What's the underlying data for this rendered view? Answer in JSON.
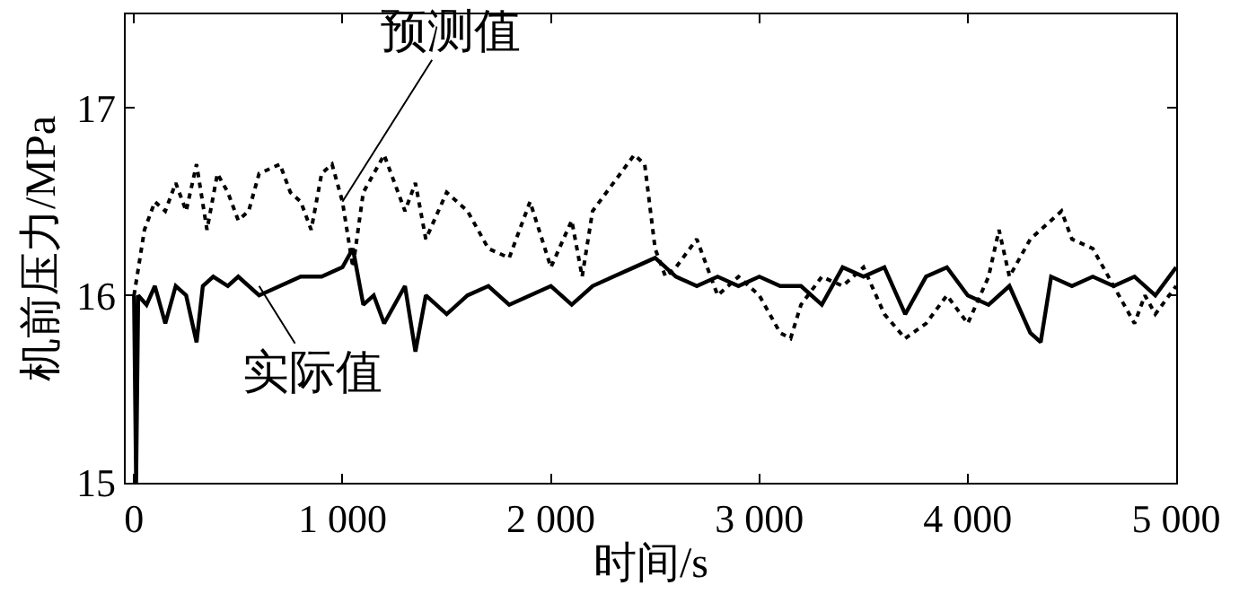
{
  "chart_data": {
    "type": "line",
    "xlabel": "时间/s",
    "ylabel": "机前压力/MPa",
    "xlim": [
      -40,
      5000
    ],
    "ylim": [
      15,
      17.5
    ],
    "xticks": [
      0,
      {
        "value": 1000,
        "label": "1 000"
      },
      {
        "value": 2000,
        "label": "2 000"
      },
      {
        "value": 3000,
        "label": "3 000"
      },
      {
        "value": 4000,
        "label": "4 000"
      },
      {
        "value": 5000,
        "label": "5 000"
      }
    ],
    "yticks": [
      15,
      16,
      17
    ],
    "marker": "none",
    "series": [
      {
        "color": "#000000",
        "line_style": "solid",
        "x": [
          0,
          10,
          20,
          60,
          100,
          150,
          200,
          250,
          300,
          330,
          380,
          450,
          500,
          600,
          700,
          800,
          900,
          1000,
          1050,
          1100,
          1150,
          1200,
          1300,
          1350,
          1400,
          1500,
          1600,
          1700,
          1800,
          1900,
          2000,
          2100,
          2200,
          2300,
          2400,
          2500,
          2600,
          2700,
          2800,
          2900,
          3000,
          3100,
          3200,
          3300,
          3400,
          3500,
          3600,
          3700,
          3800,
          3900,
          4000,
          4100,
          4200,
          4300,
          4350,
          4400,
          4500,
          4600,
          4700,
          4800,
          4900,
          5000
        ],
        "values": [
          16.0,
          15.0,
          16.0,
          15.95,
          16.05,
          15.85,
          16.05,
          16.0,
          15.75,
          16.05,
          16.1,
          16.05,
          16.1,
          16.0,
          16.05,
          16.1,
          16.1,
          16.15,
          16.25,
          15.95,
          16.0,
          15.85,
          16.05,
          15.7,
          16.0,
          15.9,
          16.0,
          16.05,
          15.95,
          16.0,
          16.05,
          15.95,
          16.05,
          16.1,
          16.15,
          16.2,
          16.1,
          16.05,
          16.1,
          16.05,
          16.1,
          16.05,
          16.05,
          15.95,
          16.15,
          16.1,
          16.15,
          15.9,
          16.1,
          16.15,
          16.0,
          15.95,
          16.05,
          15.8,
          15.75,
          16.1,
          16.05,
          16.1,
          16.05,
          16.1,
          16.0,
          16.15
        ]
      },
      {
        "color": "#000000",
        "line_style": "dotted",
        "x": [
          0,
          50,
          100,
          150,
          200,
          250,
          300,
          350,
          400,
          450,
          500,
          550,
          600,
          700,
          750,
          800,
          850,
          900,
          950,
          1000,
          1050,
          1100,
          1200,
          1300,
          1350,
          1400,
          1500,
          1600,
          1700,
          1800,
          1900,
          2000,
          2100,
          2150,
          2200,
          2300,
          2400,
          2450,
          2500,
          2550,
          2600,
          2700,
          2800,
          2900,
          3000,
          3100,
          3150,
          3200,
          3300,
          3400,
          3500,
          3600,
          3700,
          3800,
          3900,
          4000,
          4100,
          4150,
          4200,
          4300,
          4400,
          4450,
          4500,
          4600,
          4700,
          4800,
          4850,
          4900,
          5000
        ],
        "values": [
          16.0,
          16.35,
          16.5,
          16.45,
          16.6,
          16.45,
          16.7,
          16.35,
          16.65,
          16.55,
          16.4,
          16.45,
          16.65,
          16.7,
          16.55,
          16.5,
          16.35,
          16.65,
          16.7,
          16.5,
          16.15,
          16.55,
          16.75,
          16.45,
          16.6,
          16.3,
          16.55,
          16.45,
          16.25,
          16.2,
          16.5,
          16.15,
          16.4,
          16.1,
          16.45,
          16.6,
          16.75,
          16.7,
          16.25,
          16.1,
          16.15,
          16.3,
          16.0,
          16.1,
          16.0,
          15.8,
          15.77,
          15.95,
          16.1,
          16.05,
          16.15,
          15.9,
          15.77,
          15.85,
          16.0,
          15.85,
          16.1,
          16.35,
          16.1,
          16.3,
          16.4,
          16.45,
          16.3,
          16.25,
          16.05,
          15.85,
          16.0,
          15.9,
          16.05
        ]
      }
    ],
    "annotations": [
      {
        "text": "预测值",
        "x": 1000,
        "y": 16.5
      },
      {
        "text": "实际值",
        "x": 600,
        "y": 16.05
      }
    ]
  }
}
